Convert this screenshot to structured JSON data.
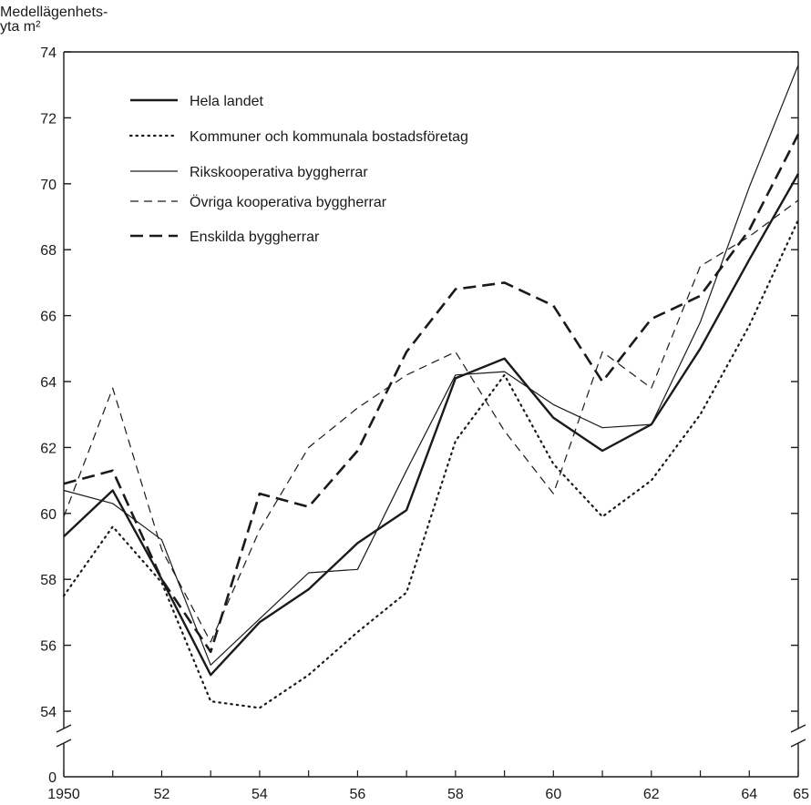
{
  "chart_data": {
    "type": "line",
    "title": "",
    "ylabel_line1": "Medellägenhets-",
    "ylabel_line2": "yta m²",
    "xlabel": "",
    "x": [
      1950,
      1951,
      1952,
      1953,
      1954,
      1955,
      1956,
      1957,
      1958,
      1959,
      1960,
      1961,
      1962,
      1963,
      1964,
      1965
    ],
    "x_tick_values": [
      1950,
      1952,
      1954,
      1956,
      1958,
      1960,
      1962,
      1964,
      1965
    ],
    "x_tick_labels": [
      "1950",
      "52",
      "54",
      "56",
      "58",
      "60",
      "62",
      "64",
      "65"
    ],
    "y_ticks": [
      54,
      56,
      58,
      60,
      62,
      64,
      66,
      68,
      70,
      72,
      74
    ],
    "y_tick_labels": [
      "54",
      "56",
      "58",
      "60",
      "62",
      "64",
      "66",
      "68",
      "70",
      "72",
      "74"
    ],
    "y_zero_label": "0",
    "ylim": [
      53.5,
      74
    ],
    "axis_break": true,
    "grid": false,
    "legend_position": "top-left",
    "series": [
      {
        "name": "Hela landet",
        "style": "solid-thick",
        "values": [
          59.3,
          60.7,
          58.0,
          55.1,
          56.7,
          57.7,
          59.1,
          60.1,
          64.1,
          64.7,
          62.9,
          61.9,
          62.7,
          65.0,
          67.7,
          70.3
        ]
      },
      {
        "name": "Kommuner och kommunala bostadsföretag",
        "style": "dotted",
        "values": [
          57.5,
          59.6,
          57.9,
          54.3,
          54.1,
          55.1,
          56.4,
          57.6,
          62.2,
          64.2,
          61.5,
          59.9,
          61.0,
          63.0,
          65.7,
          68.9
        ]
      },
      {
        "name": "Rikskooperativa byggherrar",
        "style": "solid-thin",
        "values": [
          60.7,
          60.3,
          59.2,
          55.4,
          56.8,
          58.2,
          58.3,
          61.3,
          64.2,
          64.3,
          63.3,
          62.6,
          62.7,
          65.8,
          69.9,
          73.6
        ]
      },
      {
        "name": "Övriga kooperativa byggherrar",
        "style": "dashed-thin",
        "values": [
          59.9,
          63.8,
          58.9,
          56.1,
          59.5,
          62.0,
          63.2,
          64.2,
          64.9,
          62.5,
          60.6,
          64.9,
          63.8,
          67.5,
          68.4,
          69.5
        ]
      },
      {
        "name": "Enskilda byggherrar",
        "style": "dashed-thick",
        "values": [
          60.9,
          61.3,
          58.0,
          55.8,
          60.6,
          60.2,
          61.9,
          64.9,
          66.8,
          67.0,
          66.3,
          64.0,
          65.9,
          66.6,
          68.6,
          71.5
        ]
      }
    ]
  }
}
